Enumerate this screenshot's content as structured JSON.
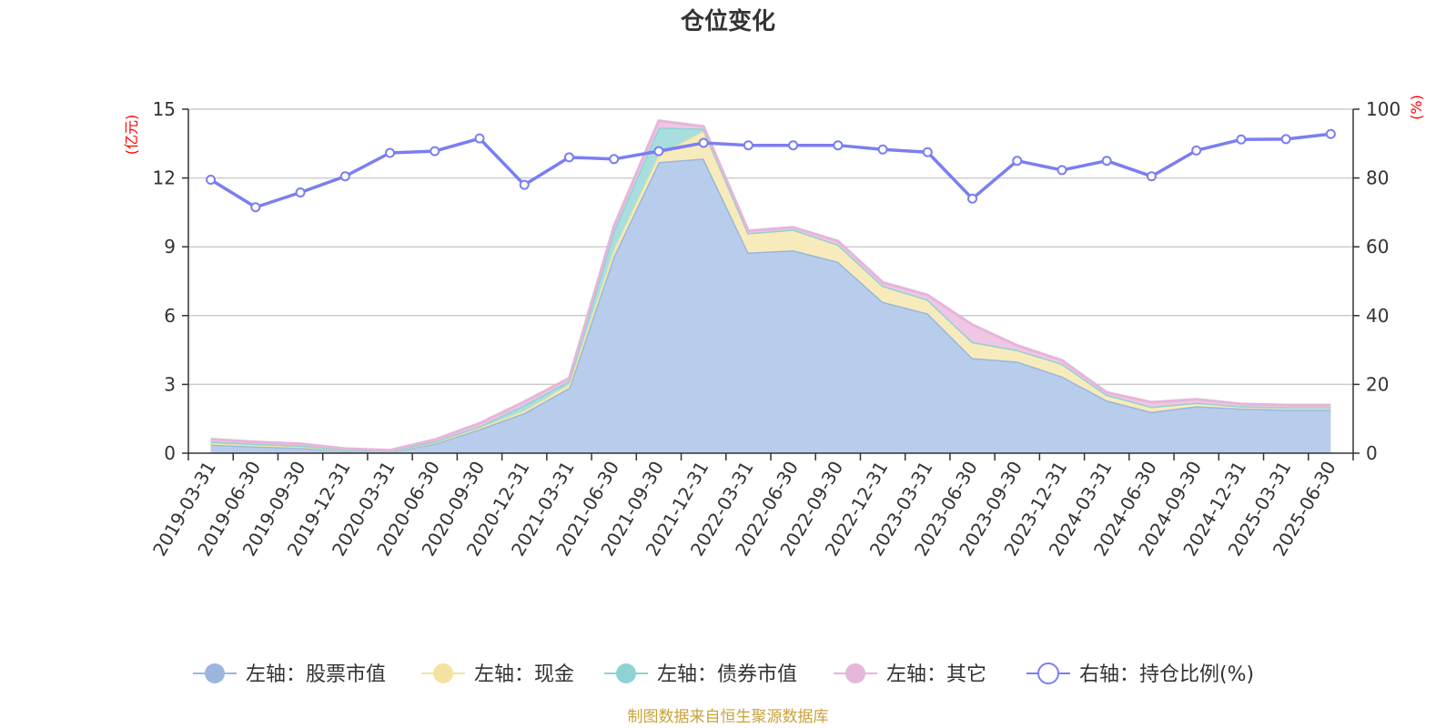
{
  "chart_data": {
    "type": "area",
    "title": "仓位变化",
    "source_note": "制图数据来自恒生聚源数据库",
    "left_axis": {
      "unit": "(亿元)",
      "min": 0,
      "max": 15,
      "ticks": [
        "0",
        "3",
        "6",
        "9",
        "12",
        "15"
      ]
    },
    "right_axis": {
      "unit": "(%)",
      "min": 0,
      "max": 100,
      "ticks": [
        "0",
        "20",
        "40",
        "60",
        "80",
        "100"
      ]
    },
    "grid": true,
    "legend_position": "bottom",
    "categories": [
      "2019-03-31",
      "2019-06-30",
      "2019-09-30",
      "2019-12-31",
      "2020-03-31",
      "2020-06-30",
      "2020-09-30",
      "2020-12-31",
      "2021-03-31",
      "2021-06-30",
      "2021-09-30",
      "2021-12-31",
      "2022-03-31",
      "2022-06-30",
      "2022-09-30",
      "2022-12-31",
      "2023-03-31",
      "2023-06-30",
      "2023-09-30",
      "2023-12-31",
      "2024-03-31",
      "2024-06-30",
      "2024-09-30",
      "2024-12-31",
      "2025-03-31",
      "2025-06-30"
    ],
    "series": [
      {
        "name": "左轴：股票市值",
        "axis": "left",
        "stack": true,
        "color": "#9ab6de",
        "fill": "#b7cdeb",
        "values": [
          0.38,
          0.3,
          0.24,
          0.1,
          0.07,
          0.42,
          1.05,
          1.75,
          2.85,
          8.6,
          12.7,
          12.85,
          8.75,
          8.85,
          8.35,
          6.6,
          6.1,
          4.15,
          4.0,
          3.35,
          2.3,
          1.8,
          2.05,
          1.95,
          1.9,
          1.9
        ]
      },
      {
        "name": "左轴：现金",
        "axis": "left",
        "stack": true,
        "color": "#f4e3a0",
        "fill": "#f8ebbb",
        "values": [
          0.05,
          0.05,
          0.05,
          0.03,
          0.02,
          0.05,
          0.06,
          0.1,
          0.15,
          0.3,
          0.3,
          1.2,
          0.85,
          0.9,
          0.75,
          0.7,
          0.6,
          0.7,
          0.5,
          0.55,
          0.25,
          0.22,
          0.15,
          0.1,
          0.1,
          0.1
        ]
      },
      {
        "name": "左轴：债券市值",
        "axis": "left",
        "stack": true,
        "color": "#8ed3d3",
        "fill": "#a8dede",
        "values": [
          0.08,
          0.06,
          0.04,
          0.02,
          0.01,
          0.04,
          0.06,
          0.25,
          0.15,
          0.8,
          1.2,
          0.1,
          0,
          0,
          0,
          0,
          0,
          0,
          0,
          0,
          0,
          0,
          0,
          0,
          0,
          0
        ]
      },
      {
        "name": "左轴：其它",
        "axis": "left",
        "stack": true,
        "color": "#e6b5da",
        "fill": "#efc6e4",
        "values": [
          0.1,
          0.08,
          0.08,
          0.05,
          0.03,
          0.08,
          0.13,
          0.15,
          0.12,
          0.2,
          0.3,
          0.1,
          0.1,
          0.1,
          0.15,
          0.15,
          0.2,
          0.75,
          0.2,
          0.15,
          0.1,
          0.2,
          0.15,
          0.1,
          0.1,
          0.1
        ]
      },
      {
        "name": "右轴：持仓比例(%)",
        "axis": "right",
        "type": "line",
        "color": "#7b7ef0",
        "values": [
          79.5,
          71.5,
          75.8,
          80.5,
          87.3,
          87.8,
          91.5,
          78.0,
          86.0,
          85.5,
          87.8,
          90.2,
          89.5,
          89.5,
          89.5,
          88.3,
          87.5,
          74.0,
          85.0,
          82.3,
          85.0,
          80.5,
          88.0,
          91.2,
          91.3,
          92.8
        ]
      }
    ]
  }
}
